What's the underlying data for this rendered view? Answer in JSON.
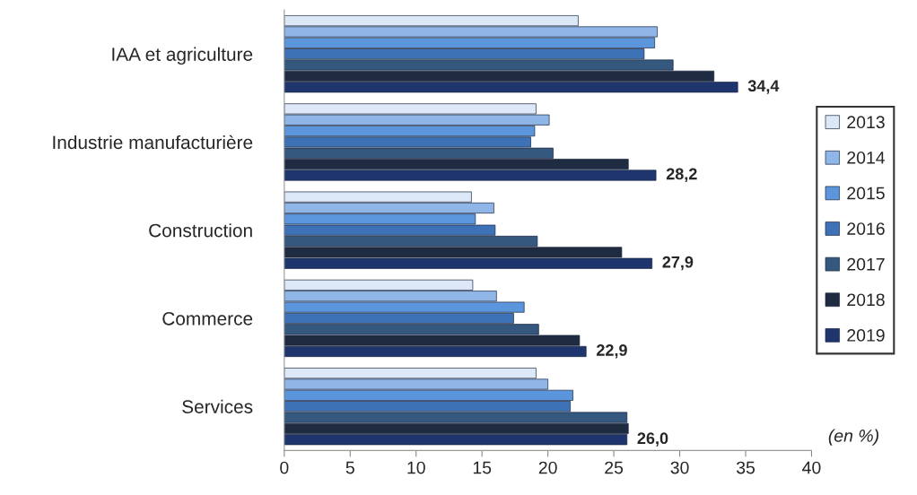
{
  "chart_data": {
    "type": "bar",
    "orientation": "horizontal",
    "categories": [
      "IAA et agriculture",
      "Industrie manufacturière",
      "Construction",
      "Commerce",
      "Services"
    ],
    "series": [
      {
        "name": "2013",
        "color": "#dce8f7",
        "values": [
          22.3,
          19.1,
          14.2,
          14.3,
          19.1
        ]
      },
      {
        "name": "2014",
        "color": "#8fb6e6",
        "values": [
          28.3,
          20.1,
          15.9,
          16.1,
          20.0
        ]
      },
      {
        "name": "2015",
        "color": "#5b96dc",
        "values": [
          28.1,
          19.0,
          14.5,
          18.2,
          21.9
        ]
      },
      {
        "name": "2016",
        "color": "#3e72b6",
        "values": [
          27.3,
          18.7,
          16.0,
          17.4,
          21.7
        ]
      },
      {
        "name": "2017",
        "color": "#35587f",
        "values": [
          29.5,
          20.4,
          19.2,
          19.3,
          26.0
        ]
      },
      {
        "name": "2018",
        "color": "#1f2b40",
        "values": [
          32.6,
          26.1,
          25.6,
          22.4,
          26.1
        ]
      },
      {
        "name": "2019",
        "color": "#1f356e",
        "values": [
          34.4,
          28.2,
          27.9,
          22.9,
          26.0
        ],
        "value_labels": [
          "34,4",
          "28,2",
          "27,9",
          "22,9",
          "26,0"
        ]
      }
    ],
    "xlim": [
      0,
      40
    ],
    "xticks": [
      0,
      5,
      10,
      15,
      20,
      25,
      30,
      35,
      40
    ],
    "annotations": [
      "(en %)"
    ],
    "legend": "right",
    "grid": false
  }
}
